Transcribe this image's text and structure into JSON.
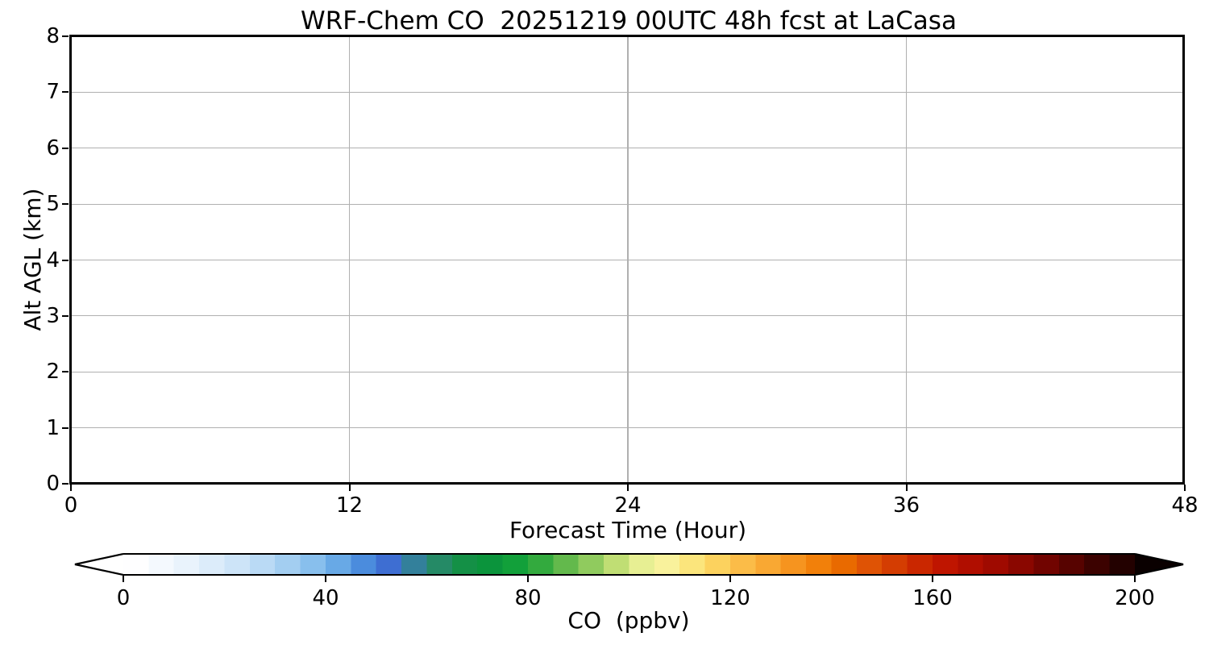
{
  "chart_data": {
    "type": "heatmap",
    "title": "WRF-Chem CO  20251219 00UTC 48h fcst at LaCasa",
    "xlabel": "Forecast Time (Hour)",
    "ylabel": "Alt AGL (km)",
    "xlim": [
      0,
      48
    ],
    "ylim": [
      0,
      8
    ],
    "xticks": [
      0,
      12,
      24,
      36,
      48
    ],
    "yticks": [
      0,
      1,
      2,
      3,
      4,
      5,
      6,
      7,
      8
    ],
    "grid": true,
    "values": [],
    "colorbar": {
      "label": "CO  (ppbv)",
      "ticks": [
        0,
        40,
        80,
        120,
        160,
        200
      ],
      "range": [
        0,
        200
      ],
      "bin_size": 5,
      "extend": "both",
      "extend_low_color": "#ffffff",
      "extend_high_color": "#0a0000",
      "segment_colors": [
        "#fefeff",
        "#f4f9fe",
        "#e9f3fc",
        "#dcecfa",
        "#cde4f8",
        "#badaf5",
        "#a3cef1",
        "#88bfed",
        "#68a9e6",
        "#4b8cdd",
        "#3e6ed2",
        "#33809b",
        "#258a66",
        "#149046",
        "#0b943c",
        "#12a03a",
        "#33aa3e",
        "#63b94c",
        "#90cb5e",
        "#c0de74",
        "#e7ef93",
        "#f9f29c",
        "#fbe57c",
        "#fcd25e",
        "#fbbc48",
        "#f9a833",
        "#f6941f",
        "#f2800a",
        "#e96a00",
        "#df5305",
        "#d43d02",
        "#ca2700",
        "#bf1500",
        "#b00e00",
        "#9f0a00",
        "#8a0700",
        "#710400",
        "#570300",
        "#3c0200",
        "#230100"
      ]
    }
  },
  "colors": {
    "background": "#ffffff",
    "axis": "#000000",
    "grid": "#b0b0b0",
    "text": "#000000"
  }
}
